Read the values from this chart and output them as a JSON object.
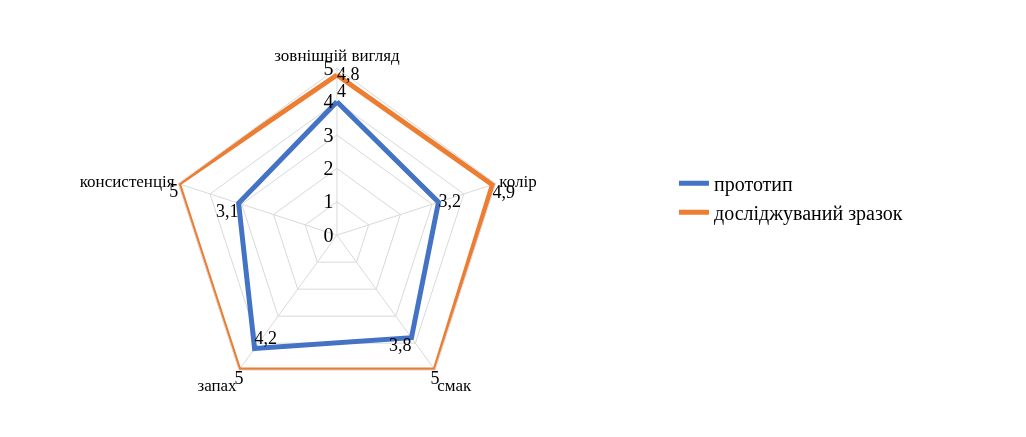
{
  "chart_data": {
    "type": "radar",
    "categories": [
      "зовнішній вигляд",
      "колір",
      "смак",
      "запах",
      "консистенція"
    ],
    "series": [
      {
        "name": "прототип",
        "color": "#4472c4",
        "values": [
          4,
          3.2,
          3.8,
          4.2,
          3.1
        ],
        "value_labels": [
          "4",
          "3,2",
          "3,8",
          "4,2",
          "3,1"
        ]
      },
      {
        "name": "досліджуваний зразок",
        "color": "#ed7d31",
        "values": [
          4.8,
          4.9,
          5,
          5,
          5
        ],
        "value_labels": [
          "4,8",
          "4,9",
          "5",
          "5",
          "5"
        ]
      }
    ],
    "ylim": [
      0,
      5
    ],
    "yticks": [
      0,
      1,
      2,
      3,
      4,
      5
    ],
    "grid": true,
    "legend": "right"
  }
}
